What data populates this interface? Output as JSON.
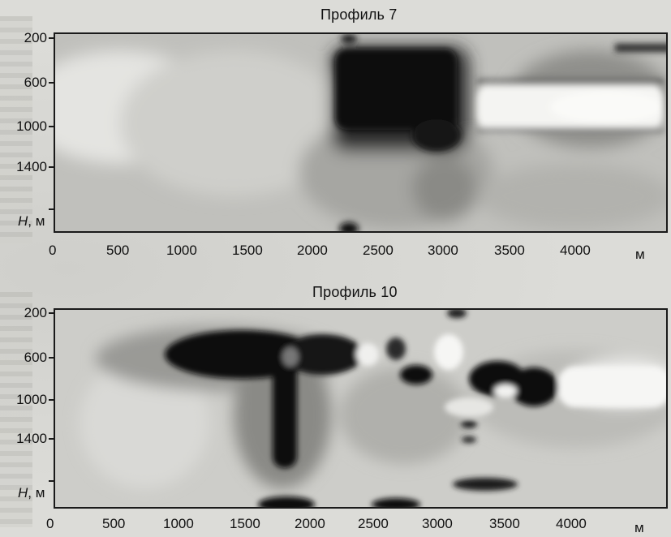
{
  "panels": [
    {
      "title": "Профиль 7",
      "y_ticks": [
        "200",
        "600",
        "1000",
        "1400"
      ],
      "y_axis_label_var": "H",
      "y_axis_label_unit": ", м",
      "x_ticks": [
        "0",
        "500",
        "1000",
        "1500",
        "2000",
        "2500",
        "3000",
        "3500",
        "4000"
      ],
      "x_unit": "м"
    },
    {
      "title": "Профиль 10",
      "y_ticks": [
        "200",
        "600",
        "1000",
        "1400"
      ],
      "y_axis_label_var": "H",
      "y_axis_label_unit": ", м",
      "x_ticks": [
        "0",
        "500",
        "1000",
        "1500",
        "2000",
        "2500",
        "3000",
        "3500",
        "4000"
      ],
      "x_unit": "м"
    }
  ],
  "colors": {
    "frame": "#1a1a1a",
    "anomaly_dark": "#0d0d0d",
    "background_field": "#bdbdb9",
    "anomaly_light": "#f6f6f4"
  }
}
